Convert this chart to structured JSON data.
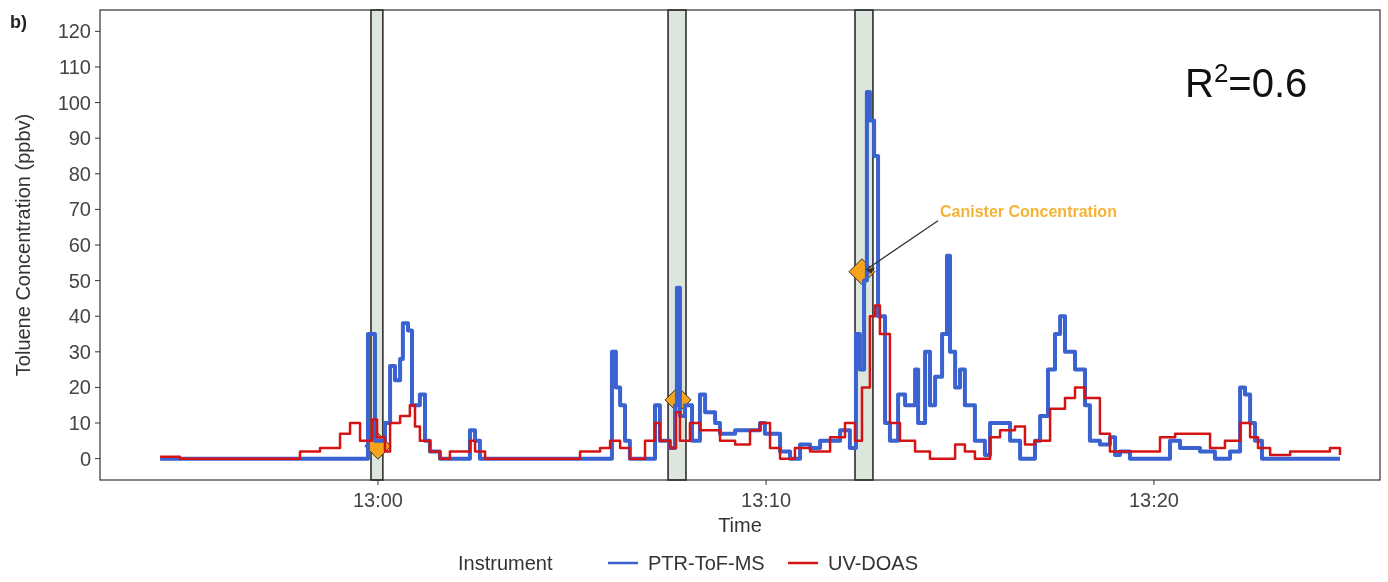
{
  "chart_data": {
    "type": "step",
    "xlabel": "Time",
    "ylabel": "Toluene Concentration (ppbv)",
    "legend_title": "Instrument",
    "legend": "bottom",
    "grid": false,
    "xlim": [
      12.8806,
      13.4304
    ],
    "xticks": [
      {
        "value": 13,
        "label": "13:00"
      },
      {
        "value": 13.1667,
        "label": "13:10"
      },
      {
        "value": 13.3333,
        "label": "13:20"
      }
    ],
    "ylim": [
      -6,
      126
    ],
    "yticks": [
      0,
      10,
      20,
      30,
      40,
      50,
      60,
      70,
      80,
      90,
      100,
      110,
      120
    ],
    "bands": [
      {
        "axis": "x",
        "from": 12.997,
        "to": 13.0021,
        "label": null,
        "color": "#dde6dd"
      },
      {
        "axis": "x",
        "from": 13.1246,
        "to": 13.1323,
        "label": null,
        "color": "#dde6dd"
      },
      {
        "axis": "x",
        "from": 13.2049,
        "to": 13.2126,
        "label": null,
        "color": "#dde6dd"
      }
    ],
    "series": [
      {
        "name": "PTR-ToF-MS",
        "color": "#3a62d0",
        "x": [
          12.9064,
          12.9914,
          12.9957,
          12.9987,
          13.003,
          13.0052,
          13.0073,
          13.0095,
          13.0107,
          13.0129,
          13.0146,
          13.018,
          13.0202,
          13.0223,
          13.0266,
          13.0395,
          13.0417,
          13.0438,
          13.1005,
          13.1022,
          13.104,
          13.1061,
          13.1082,
          13.119,
          13.1211,
          13.1254,
          13.1276,
          13.1284,
          13.1297,
          13.1319,
          13.1349,
          13.1383,
          13.1405,
          13.1448,
          13.1469,
          13.1534,
          13.1641,
          13.1662,
          13.1727,
          13.177,
          13.1813,
          13.1856,
          13.1899,
          13.1985,
          13.2027,
          13.2053,
          13.207,
          13.2088,
          13.21,
          13.2113,
          13.2131,
          13.2148,
          13.2178,
          13.2199,
          13.2234,
          13.2264,
          13.2307,
          13.232,
          13.235,
          13.2371,
          13.2393,
          13.2423,
          13.2444,
          13.2457,
          13.2479,
          13.25,
          13.2521,
          13.2564,
          13.2607,
          13.2629,
          13.2672,
          13.2715,
          13.2758,
          13.2822,
          13.2844,
          13.2878,
          13.2908,
          13.293,
          13.2951,
          13.2994,
          13.3037,
          13.3058,
          13.3101,
          13.3144,
          13.3166,
          13.3187,
          13.323,
          13.3402,
          13.3445,
          13.3531,
          13.3595,
          13.366,
          13.3703,
          13.3724,
          13.3746,
          13.3767,
          13.3797,
          13.4132
        ],
        "values": [
          0,
          0,
          35,
          5,
          10,
          26,
          22,
          28,
          38,
          36,
          15,
          18,
          5,
          2,
          0,
          8,
          5,
          0,
          30,
          20,
          15,
          5,
          0,
          15,
          5,
          3,
          15,
          48,
          12,
          15,
          5,
          18,
          13,
          10,
          7,
          8,
          10,
          7,
          2,
          0,
          4,
          3,
          5,
          8,
          3,
          35,
          25,
          50,
          103,
          95,
          85,
          40,
          10,
          5,
          18,
          15,
          25,
          10,
          30,
          15,
          23,
          35,
          57,
          30,
          20,
          25,
          15,
          5,
          1,
          10,
          10,
          5,
          0,
          5,
          12,
          25,
          35,
          40,
          30,
          25,
          15,
          5,
          4,
          6,
          1,
          2,
          0,
          5,
          3,
          2,
          0,
          2,
          20,
          18,
          10,
          5,
          0,
          0
        ]
      },
      {
        "name": "UV-DOAS",
        "color": "#d41414",
        "x": [
          12.9064,
          12.9149,
          12.9665,
          12.9751,
          12.9837,
          12.988,
          12.9923,
          12.9974,
          12.9996,
          13.003,
          13.0052,
          13.0095,
          13.0137,
          13.0159,
          13.018,
          13.0223,
          13.0266,
          13.0309,
          13.0395,
          13.0417,
          13.046,
          13.0868,
          13.0954,
          13.0997,
          13.104,
          13.1082,
          13.1147,
          13.119,
          13.1211,
          13.1254,
          13.128,
          13.1297,
          13.134,
          13.1383,
          13.1469,
          13.1534,
          13.1598,
          13.1641,
          13.1684,
          13.1727,
          13.1791,
          13.1856,
          13.1942,
          13.2006,
          13.2049,
          13.2079,
          13.2113,
          13.2135,
          13.2156,
          13.2199,
          13.2242,
          13.2307,
          13.2371,
          13.2436,
          13.2479,
          13.2521,
          13.2564,
          13.2629,
          13.2672,
          13.2736,
          13.2779,
          13.2822,
          13.2887,
          13.2951,
          13.2994,
          13.3037,
          13.3101,
          13.3144,
          13.3273,
          13.3359,
          13.3424,
          13.351,
          13.3574,
          13.3638,
          13.3703,
          13.3746,
          13.378,
          13.3832,
          13.3918,
          13.4089,
          13.4132
        ],
        "values": [
          0.5,
          0,
          2,
          3,
          7,
          10,
          5,
          11,
          6,
          2,
          10,
          12,
          15,
          9,
          5,
          2,
          0,
          2,
          5,
          2,
          0,
          2,
          3,
          5,
          3,
          0,
          5,
          10,
          5,
          3,
          13,
          5,
          10,
          8,
          5,
          4,
          8,
          10,
          3,
          0,
          3,
          2,
          6,
          10,
          5,
          20,
          40,
          43,
          35,
          10,
          5,
          2,
          0,
          0,
          4,
          2,
          0,
          6,
          8,
          9,
          4,
          5,
          14,
          17,
          20,
          17,
          7,
          2,
          2,
          6,
          7,
          7,
          3,
          5,
          10,
          6,
          3,
          1,
          2,
          3,
          1
        ]
      },
      {
        "color": "#f5a31a",
        "type": "scatter",
        "marker": "diamond",
        "x": [
          13.0,
          13.1289,
          13.2079
        ],
        "values": [
          3.5,
          16.5,
          52.5
        ]
      }
    ],
    "annotations": [
      "b)",
      "R$^{2}$=0.6",
      {
        "text": "Canister Concentration",
        "x": 13.2079,
        "y": 52.5
      }
    ]
  }
}
